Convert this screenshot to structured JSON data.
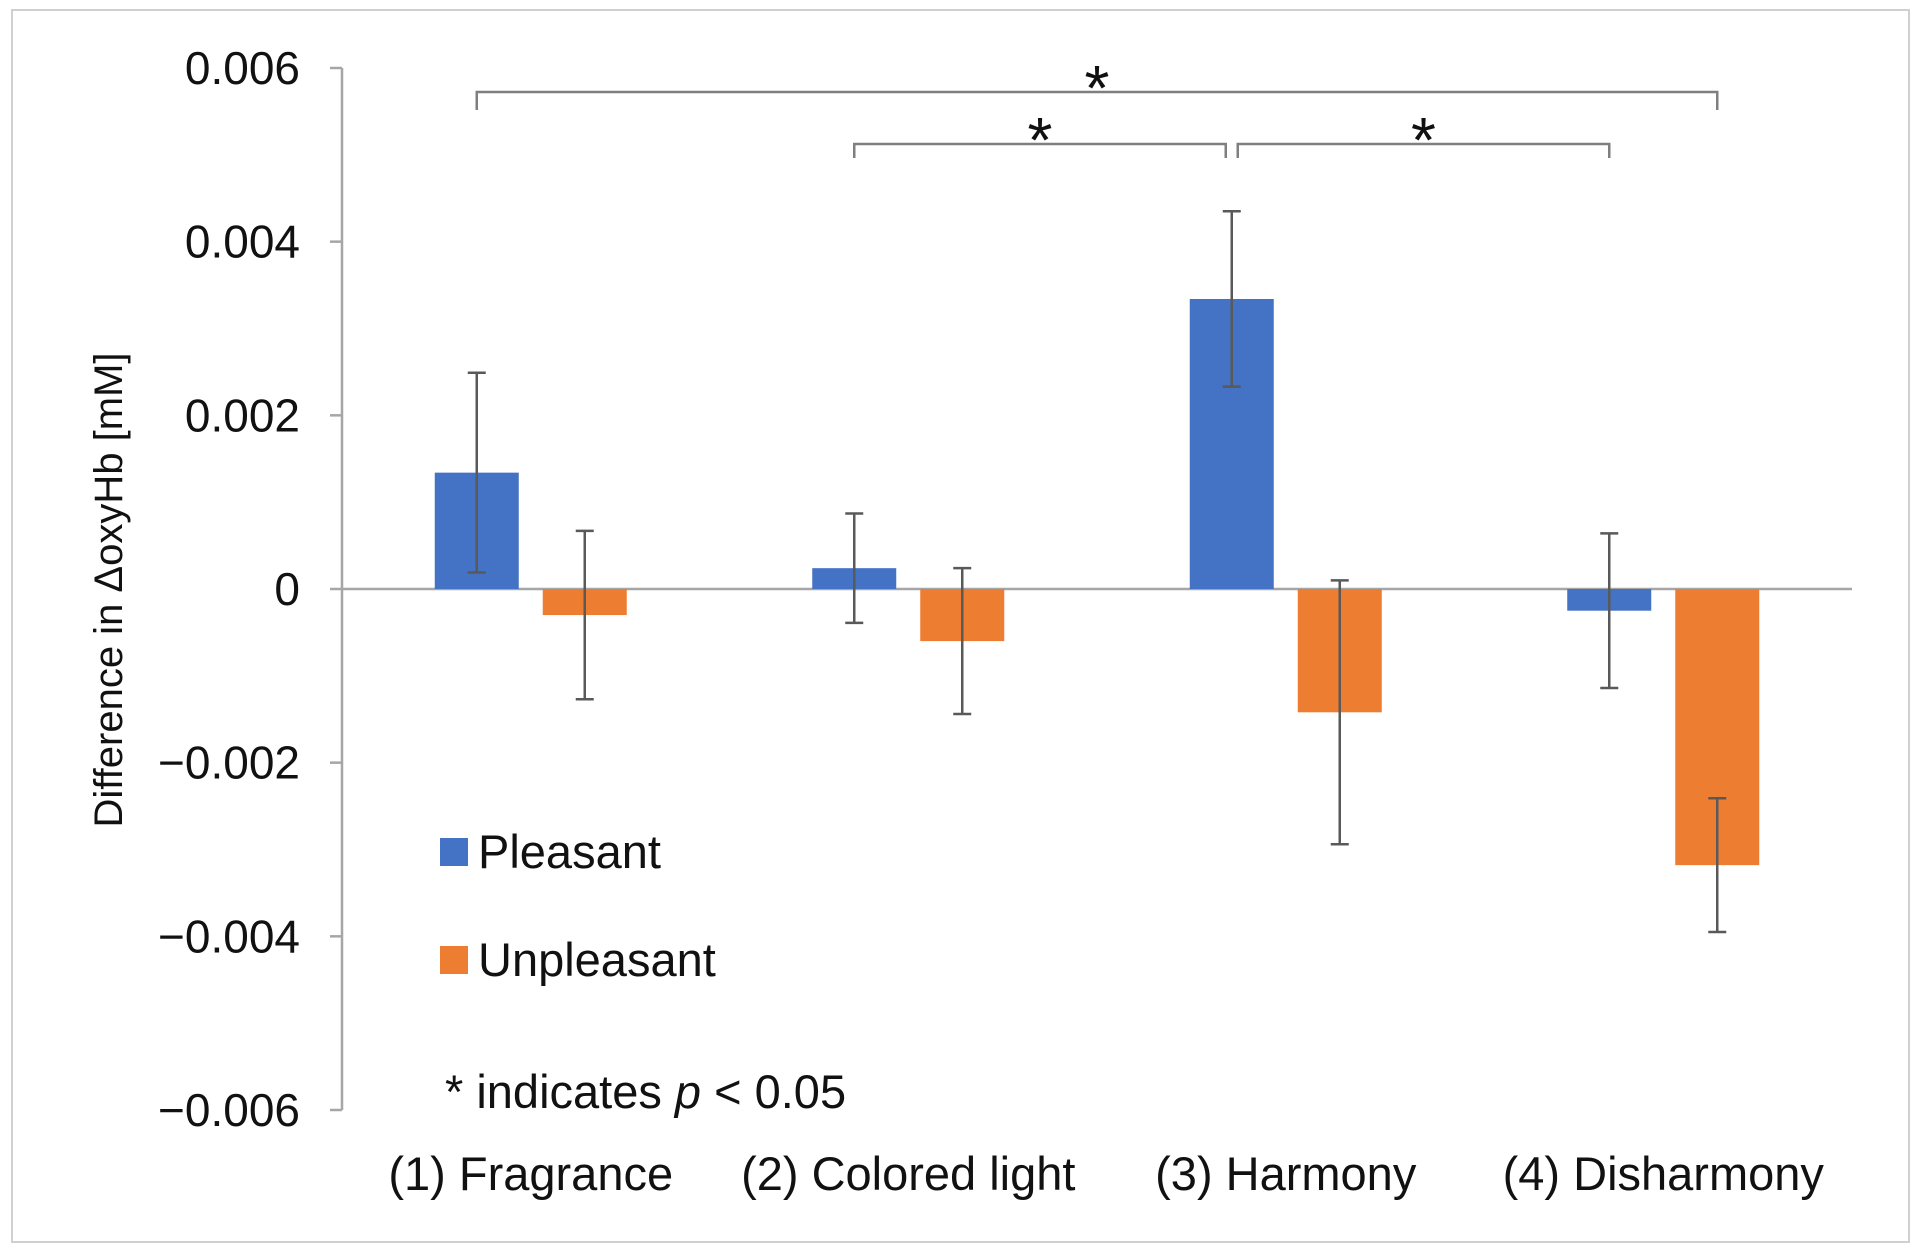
{
  "chart_data": {
    "type": "bar",
    "title": "",
    "xlabel": "",
    "ylabel": "Difference in ΔoxyHb [mM]",
    "ylim": [
      -0.006,
      0.006
    ],
    "yticks": [
      0.006,
      0.004,
      0.002,
      0,
      -0.002,
      -0.004,
      -0.006
    ],
    "ytick_labels": [
      "0.006",
      "0.004",
      "0.002",
      "0",
      "−0.002",
      "−0.004",
      "−0.006"
    ],
    "categories": [
      "(1) Fragrance",
      "(2) Colored light",
      "(3) Harmony",
      "(4) Disharmony"
    ],
    "series": [
      {
        "name": "Pleasant",
        "color": "#4472C4",
        "values": [
          0.00134,
          0.00024,
          0.00334,
          -0.00025
        ],
        "error": [
          0.00115,
          0.00063,
          0.00101,
          0.00089
        ]
      },
      {
        "name": "Unpleasant",
        "color": "#ED7D31",
        "values": [
          -0.0003,
          -0.0006,
          -0.00142,
          -0.00318
        ],
        "error": [
          0.00097,
          0.00084,
          0.00152,
          0.00077
        ]
      }
    ],
    "legend": {
      "position": "lower-left",
      "entries": [
        "Pleasant",
        "Unpleasant"
      ]
    },
    "annotations": {
      "note_prefix": "* indicates ",
      "note_var": "p",
      "note_suffix": " < 0.05",
      "brackets": [
        {
          "from": {
            "category": 0,
            "series": 0
          },
          "to": {
            "category": 3,
            "series": 1
          },
          "star": "*"
        },
        {
          "from": {
            "category": 1,
            "series": 0
          },
          "to": {
            "category": 2,
            "series": 0
          },
          "star": "*"
        },
        {
          "from": {
            "category": 2,
            "series": 0
          },
          "to": {
            "category": 3,
            "series": 0
          },
          "star": "*"
        }
      ]
    },
    "grid": false
  }
}
